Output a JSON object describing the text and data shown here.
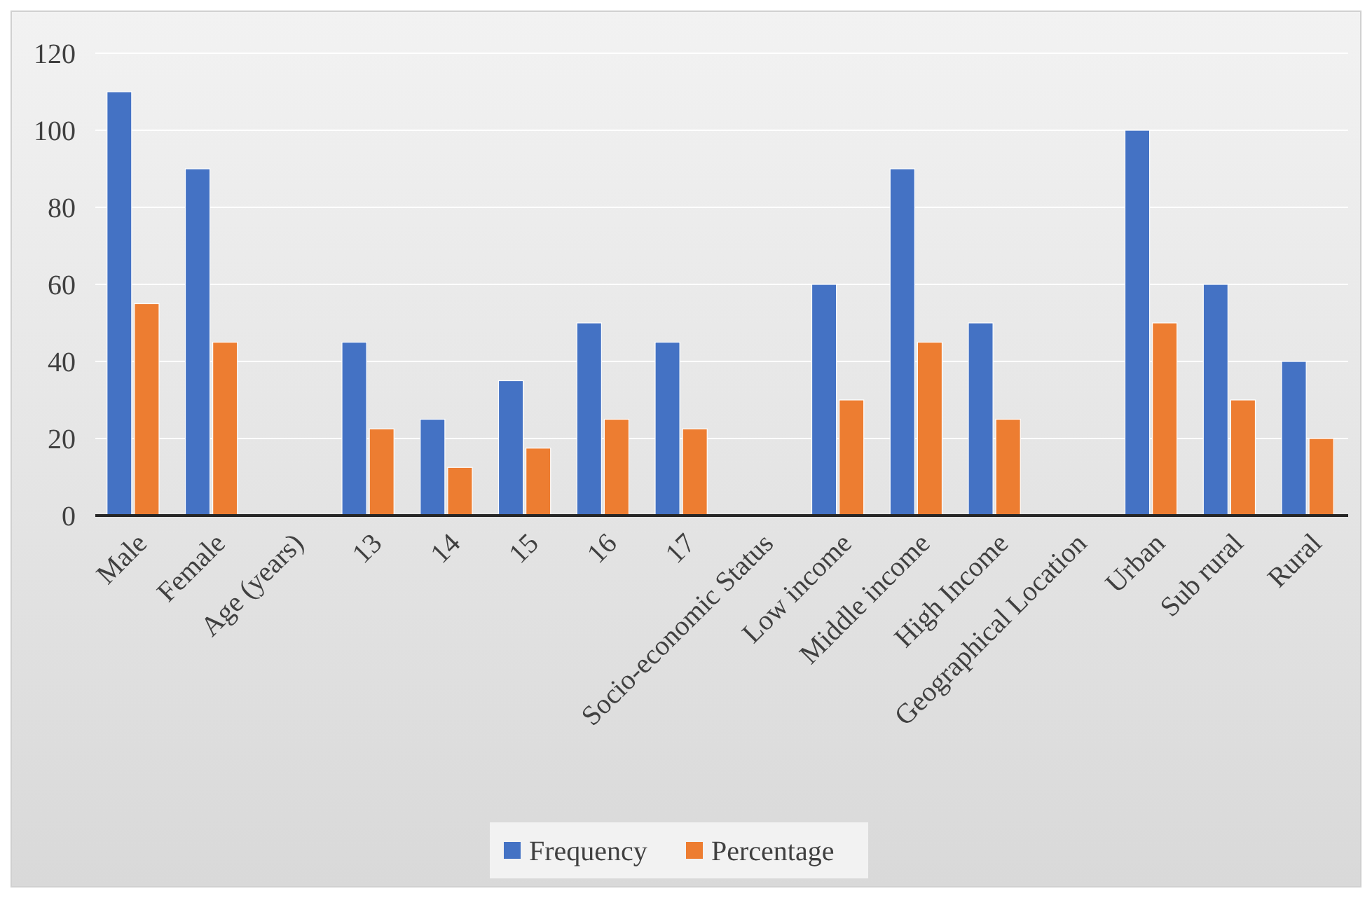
{
  "chart_data": {
    "type": "bar",
    "categories": [
      "Male",
      "Female",
      "Age (years)",
      "13",
      "14",
      "15",
      "16",
      "17",
      "Socio-economic Status",
      "Low income",
      "Middle income",
      "High Income",
      "Geographical Location",
      "Urban",
      "Sub rural",
      "Rural"
    ],
    "series": [
      {
        "name": "Frequency",
        "color": "#4472c4",
        "values": [
          110,
          90,
          null,
          45,
          25,
          35,
          50,
          45,
          null,
          60,
          90,
          50,
          null,
          100,
          60,
          40
        ]
      },
      {
        "name": "Percentage",
        "color": "#ed7d31",
        "values": [
          55,
          45,
          null,
          22.5,
          12.5,
          17.5,
          25,
          22.5,
          null,
          30,
          45,
          25,
          null,
          50,
          30,
          20
        ]
      }
    ],
    "ylim": [
      0,
      120
    ],
    "yticks": [
      0,
      20,
      40,
      60,
      80,
      100,
      120
    ],
    "grid": "y",
    "legend": "bottom"
  }
}
